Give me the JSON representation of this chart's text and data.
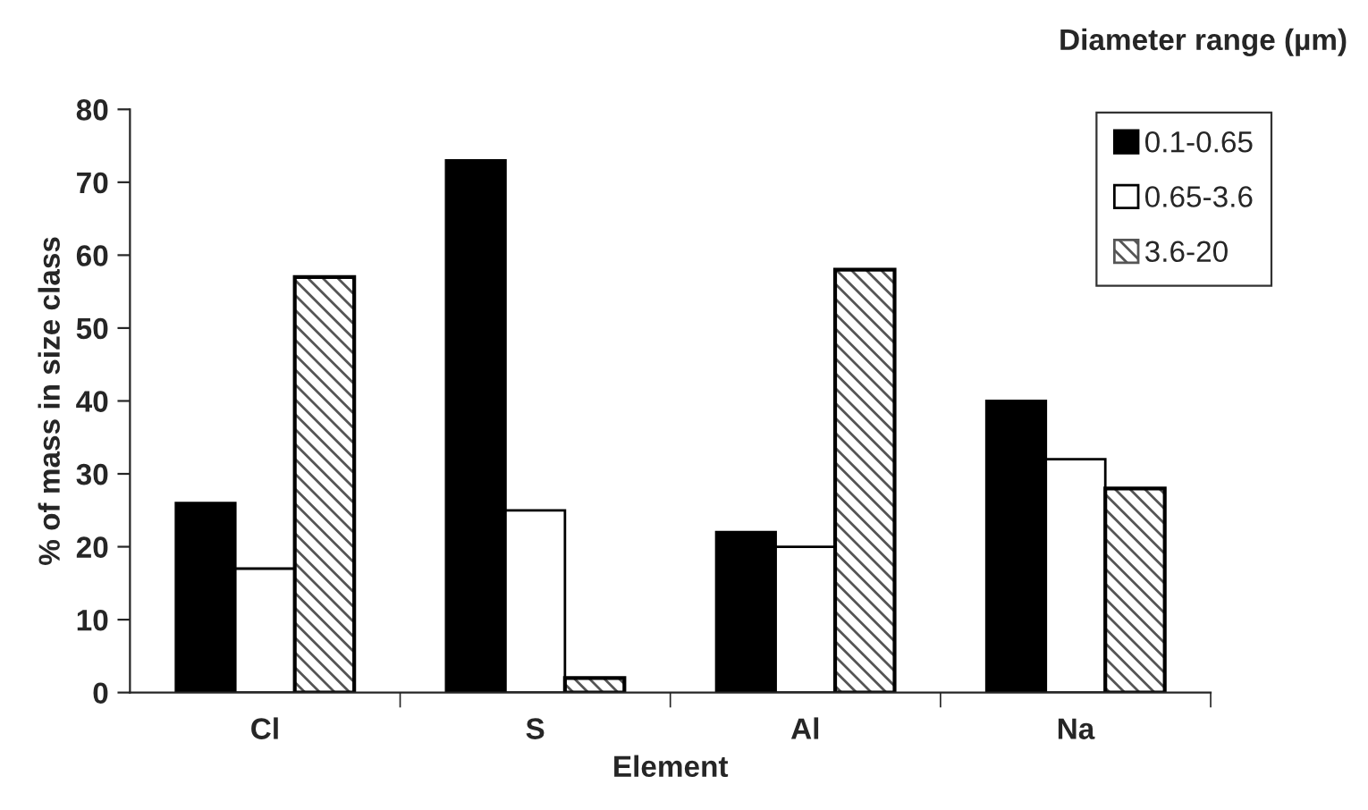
{
  "chart_data": {
    "type": "bar",
    "xlabel": "Element",
    "ylabel": "% of mass in size class",
    "legend_title": "Diameter range (µm)",
    "categories": [
      "Cl",
      "S",
      "Al",
      "Na"
    ],
    "series": [
      {
        "name": "0.1-0.65",
        "color": "#000000",
        "values": [
          26,
          73,
          22,
          40
        ]
      },
      {
        "name": "0.65-3.6",
        "color": "#ffffff",
        "values": [
          17,
          25,
          20,
          32
        ]
      },
      {
        "name": "3.6-20",
        "color": "#555555",
        "values": [
          57,
          2,
          58,
          28
        ]
      }
    ],
    "ylim": [
      0,
      80
    ],
    "yticks": [
      0,
      10,
      20,
      30,
      40,
      50,
      60,
      70,
      80
    ],
    "grid": false,
    "legend": "top right"
  }
}
